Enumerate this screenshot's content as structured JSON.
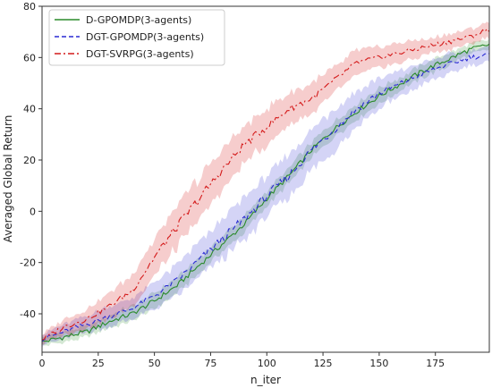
{
  "chart_data": {
    "type": "line",
    "title": "",
    "xlabel": "n_iter",
    "ylabel": "Averaged Global Return",
    "xlim": [
      0,
      199
    ],
    "ylim": [
      -55,
      80
    ],
    "xticks": [
      0,
      25,
      50,
      75,
      100,
      125,
      150,
      175
    ],
    "yticks": [
      -40,
      -20,
      0,
      20,
      40,
      60,
      80
    ],
    "grid": false,
    "legend_position": "top-left",
    "series": [
      {
        "name": "D-GPOMDP(3-agents)",
        "color": "#2a8a2a",
        "dash": "solid",
        "x": [
          0,
          10,
          20,
          30,
          40,
          50,
          60,
          70,
          80,
          90,
          100,
          110,
          120,
          130,
          140,
          150,
          160,
          170,
          180,
          190,
          199
        ],
        "y": [
          -51,
          -49,
          -47,
          -43,
          -40,
          -35,
          -29,
          -21,
          -13,
          -5,
          5,
          14,
          24,
          32,
          39,
          45,
          50,
          55,
          59,
          63,
          65
        ],
        "band": [
          1.5,
          2,
          2,
          2.5,
          3,
          3,
          3,
          3,
          3,
          3,
          3,
          3,
          3,
          3,
          3,
          3,
          2.5,
          2.5,
          2.5,
          2,
          2
        ]
      },
      {
        "name": "DGT-GPOMDP(3-agents)",
        "color": "#2a2ad4",
        "dash": "dashed",
        "x": [
          0,
          10,
          20,
          30,
          40,
          50,
          60,
          70,
          80,
          90,
          100,
          110,
          120,
          130,
          140,
          150,
          160,
          170,
          180,
          190,
          199
        ],
        "y": [
          -50,
          -47,
          -44,
          -41,
          -38,
          -33,
          -27,
          -19,
          -11,
          -3,
          6,
          14,
          24,
          32,
          40,
          46,
          50,
          54,
          57,
          60,
          61
        ],
        "band": [
          2,
          3,
          3,
          4,
          4,
          5,
          6,
          7,
          8,
          8,
          8,
          8,
          8,
          8,
          7,
          6,
          5,
          4,
          4,
          3,
          3
        ]
      },
      {
        "name": "DGT-SVRPG(3-agents)",
        "color": "#d41a1a",
        "dash": "dashdot",
        "x": [
          0,
          10,
          20,
          30,
          40,
          50,
          60,
          70,
          80,
          90,
          100,
          110,
          120,
          130,
          140,
          150,
          160,
          170,
          180,
          190,
          199
        ],
        "y": [
          -50,
          -45,
          -42,
          -37,
          -31,
          -18,
          -6,
          5,
          16,
          26,
          33,
          40,
          44,
          51,
          58,
          60,
          62,
          64,
          66,
          68,
          71
        ],
        "band": [
          2,
          3,
          4,
          5,
          6,
          7,
          8,
          8,
          8,
          7,
          7,
          6,
          6,
          5,
          5,
          4,
          4,
          3,
          3,
          3,
          3
        ]
      }
    ]
  }
}
